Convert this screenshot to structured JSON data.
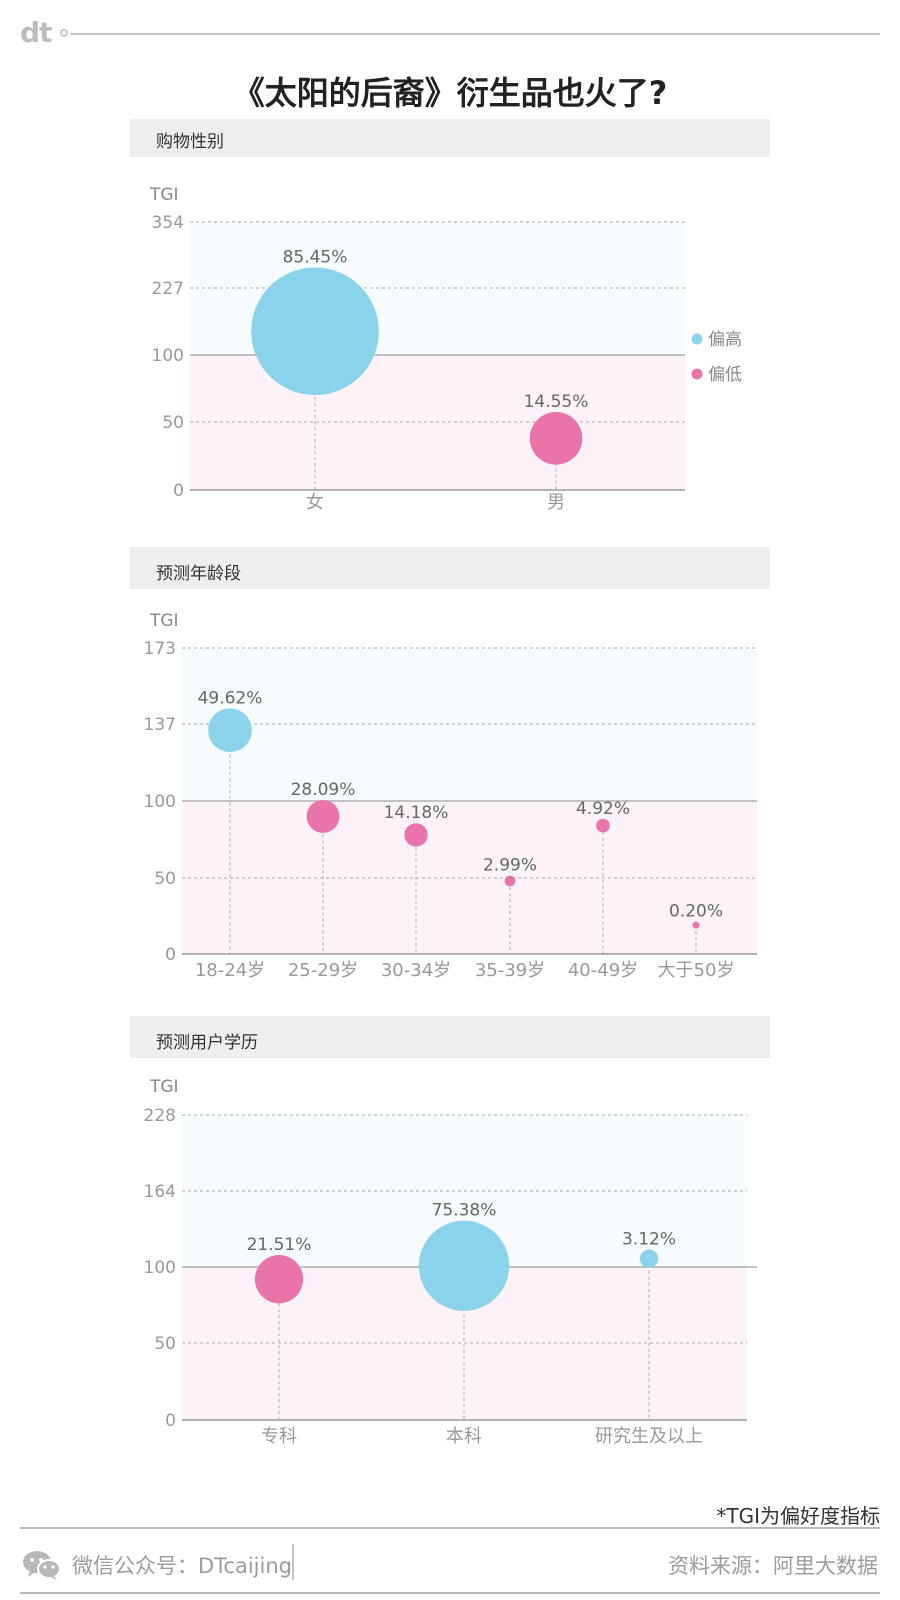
{
  "header": {
    "logo": "dt",
    "title": "《太阳的后裔》衍生品也火了?"
  },
  "legend": {
    "high": "偏高",
    "low": "偏低"
  },
  "colors": {
    "high": "#8ad3ea",
    "low": "#e874aa",
    "bg_high": "#f6fbfe",
    "bg_low": "#fdf2f8"
  },
  "chart_data": [
    {
      "type": "scatter",
      "title": "购物性别",
      "ylabel": "TGI",
      "yticks": [
        0,
        50,
        100,
        227,
        354
      ],
      "reference": 100,
      "categories": [
        "女",
        "男"
      ],
      "series": [
        {
          "name": "偏高",
          "x": "女",
          "tgi": 145,
          "share": 85.45,
          "label": "85.45%"
        },
        {
          "name": "偏低",
          "x": "男",
          "tgi": 38,
          "share": 14.55,
          "label": "14.55%"
        }
      ],
      "legend": "right"
    },
    {
      "type": "scatter",
      "title": "预测年龄段",
      "ylabel": "TGI",
      "yticks": [
        0,
        50,
        100,
        137,
        173
      ],
      "reference": 100,
      "categories": [
        "18-24岁",
        "25-29岁",
        "30-34岁",
        "35-39岁",
        "40-49岁",
        "大于50岁"
      ],
      "series": [
        {
          "x": "18-24岁",
          "tgi": 134,
          "share": 49.62,
          "label": "49.62%"
        },
        {
          "x": "25-29岁",
          "tgi": 90,
          "share": 28.09,
          "label": "28.09%"
        },
        {
          "x": "30-34岁",
          "tgi": 78,
          "share": 14.18,
          "label": "14.18%"
        },
        {
          "x": "35-39岁",
          "tgi": 48,
          "share": 2.99,
          "label": "2.99%"
        },
        {
          "x": "40-49岁",
          "tgi": 84,
          "share": 4.92,
          "label": "4.92%"
        },
        {
          "x": "大于50岁",
          "tgi": 19,
          "share": 0.2,
          "label": "0.20%"
        }
      ]
    },
    {
      "type": "scatter",
      "title": "预测用户学历",
      "ylabel": "TGI",
      "yticks": [
        0,
        50,
        100,
        164,
        228
      ],
      "reference": 100,
      "categories": [
        "专科",
        "本科",
        "研究生及以上"
      ],
      "series": [
        {
          "x": "专科",
          "tgi": 92,
          "share": 21.51,
          "label": "21.51%"
        },
        {
          "x": "本科",
          "tgi": 101,
          "share": 75.38,
          "label": "75.38%"
        },
        {
          "x": "研究生及以上",
          "tgi": 107,
          "share": 3.12,
          "label": "3.12%"
        }
      ]
    }
  ],
  "footnote": "*TGI为偏好度指标",
  "footer": {
    "account": "微信公众号：DTcaijing",
    "source": "资料来源：阿里大数据"
  }
}
